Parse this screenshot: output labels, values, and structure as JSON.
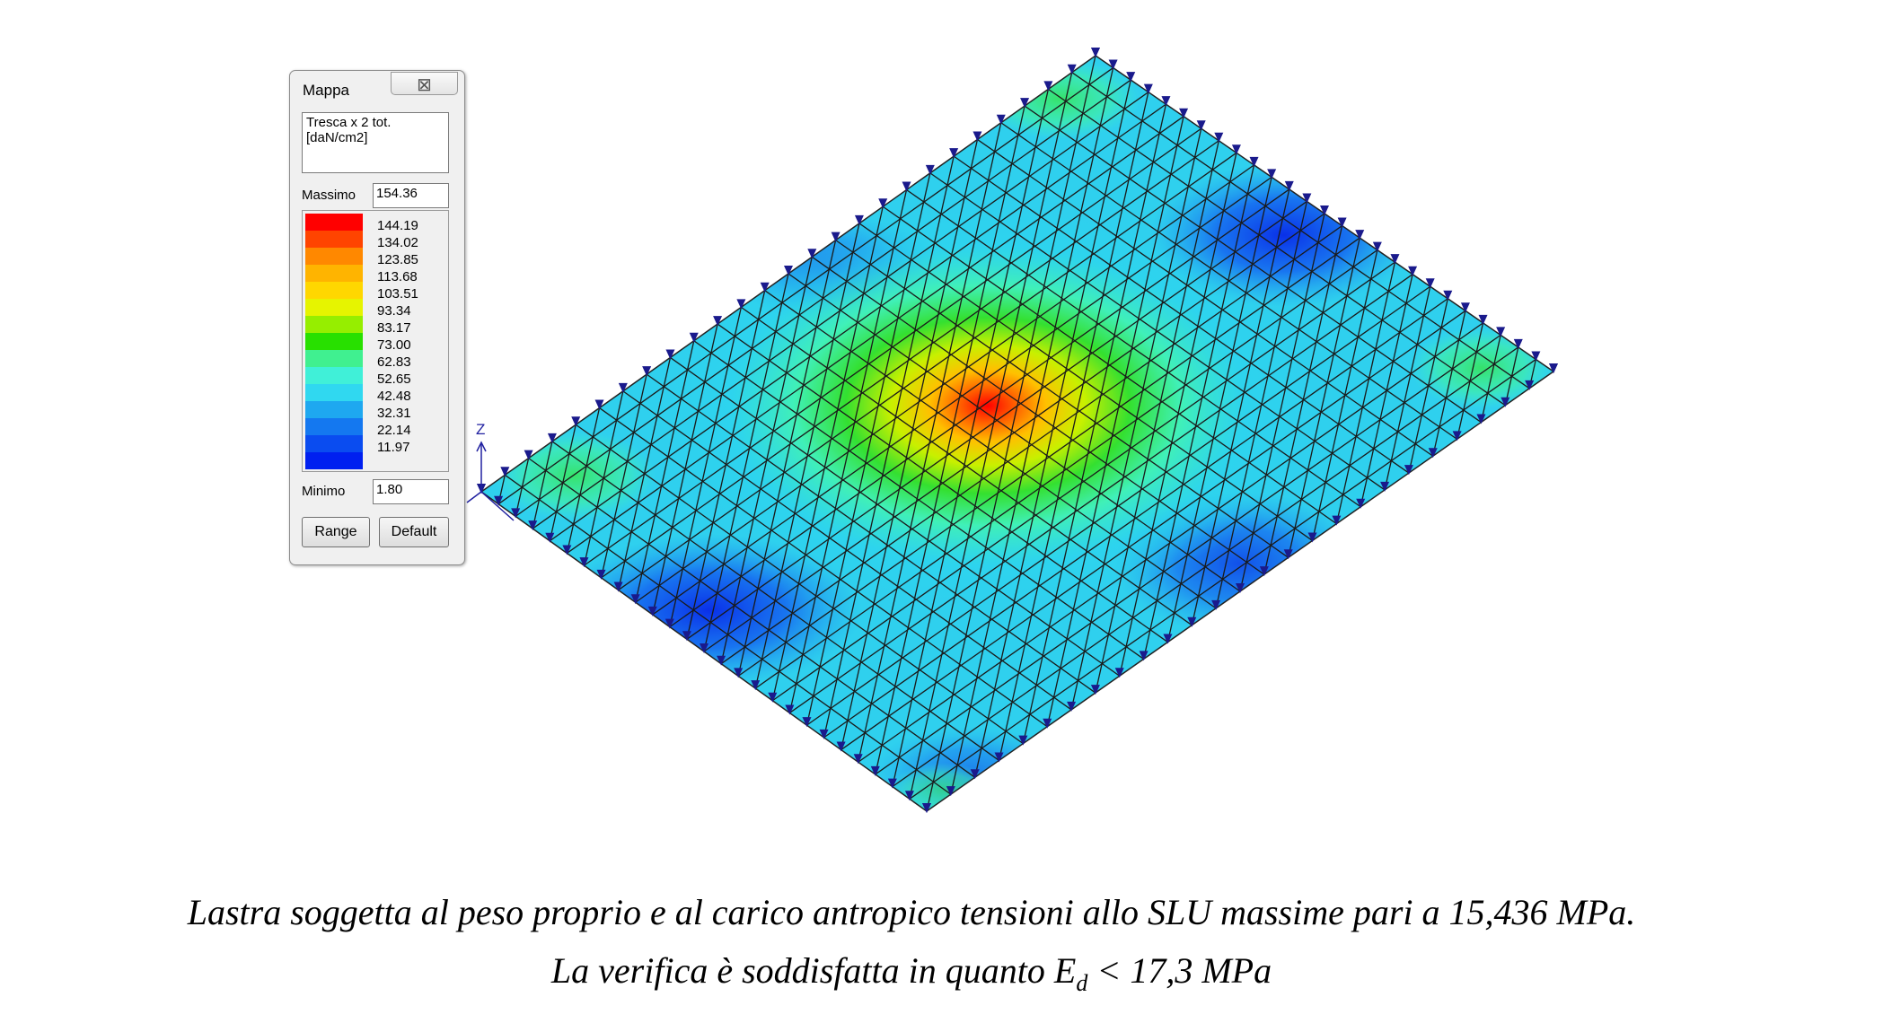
{
  "legend_window": {
    "title": "Mappa",
    "close_glyph": "⊠",
    "quantity": "Tresca x 2 tot.",
    "unit": "[daN/cm2]",
    "max_label": "Massimo",
    "max_value": "154.36",
    "min_label": "Minimo",
    "min_value": "1.80",
    "range_button": "Range",
    "default_button": "Default",
    "colors": [
      "#ff0000",
      "#ff4400",
      "#ff8800",
      "#ffb400",
      "#ffd700",
      "#e6f400",
      "#96ee00",
      "#28e000",
      "#40f090",
      "#40f0d8",
      "#30d8f0",
      "#1ea8f0",
      "#1478f0",
      "#0a4cf0",
      "#0020f0"
    ],
    "ticks": [
      "144.19",
      "134.02",
      "123.85",
      "113.68",
      "103.51",
      "93.34",
      "83.17",
      "73.00",
      "62.83",
      "52.65",
      "42.48",
      "32.31",
      "22.14",
      "11.97"
    ]
  },
  "axis_label": "Z",
  "caption": {
    "line1": "Lastra soggetta al peso proprio e al carico antropico tensioni allo SLU massime pari a 15,436 MPa.",
    "line2_pre": "La verifica è soddisfatta in quanto E",
    "line2_sub": "d",
    "line2_post": " < 17,3 MPa"
  }
}
